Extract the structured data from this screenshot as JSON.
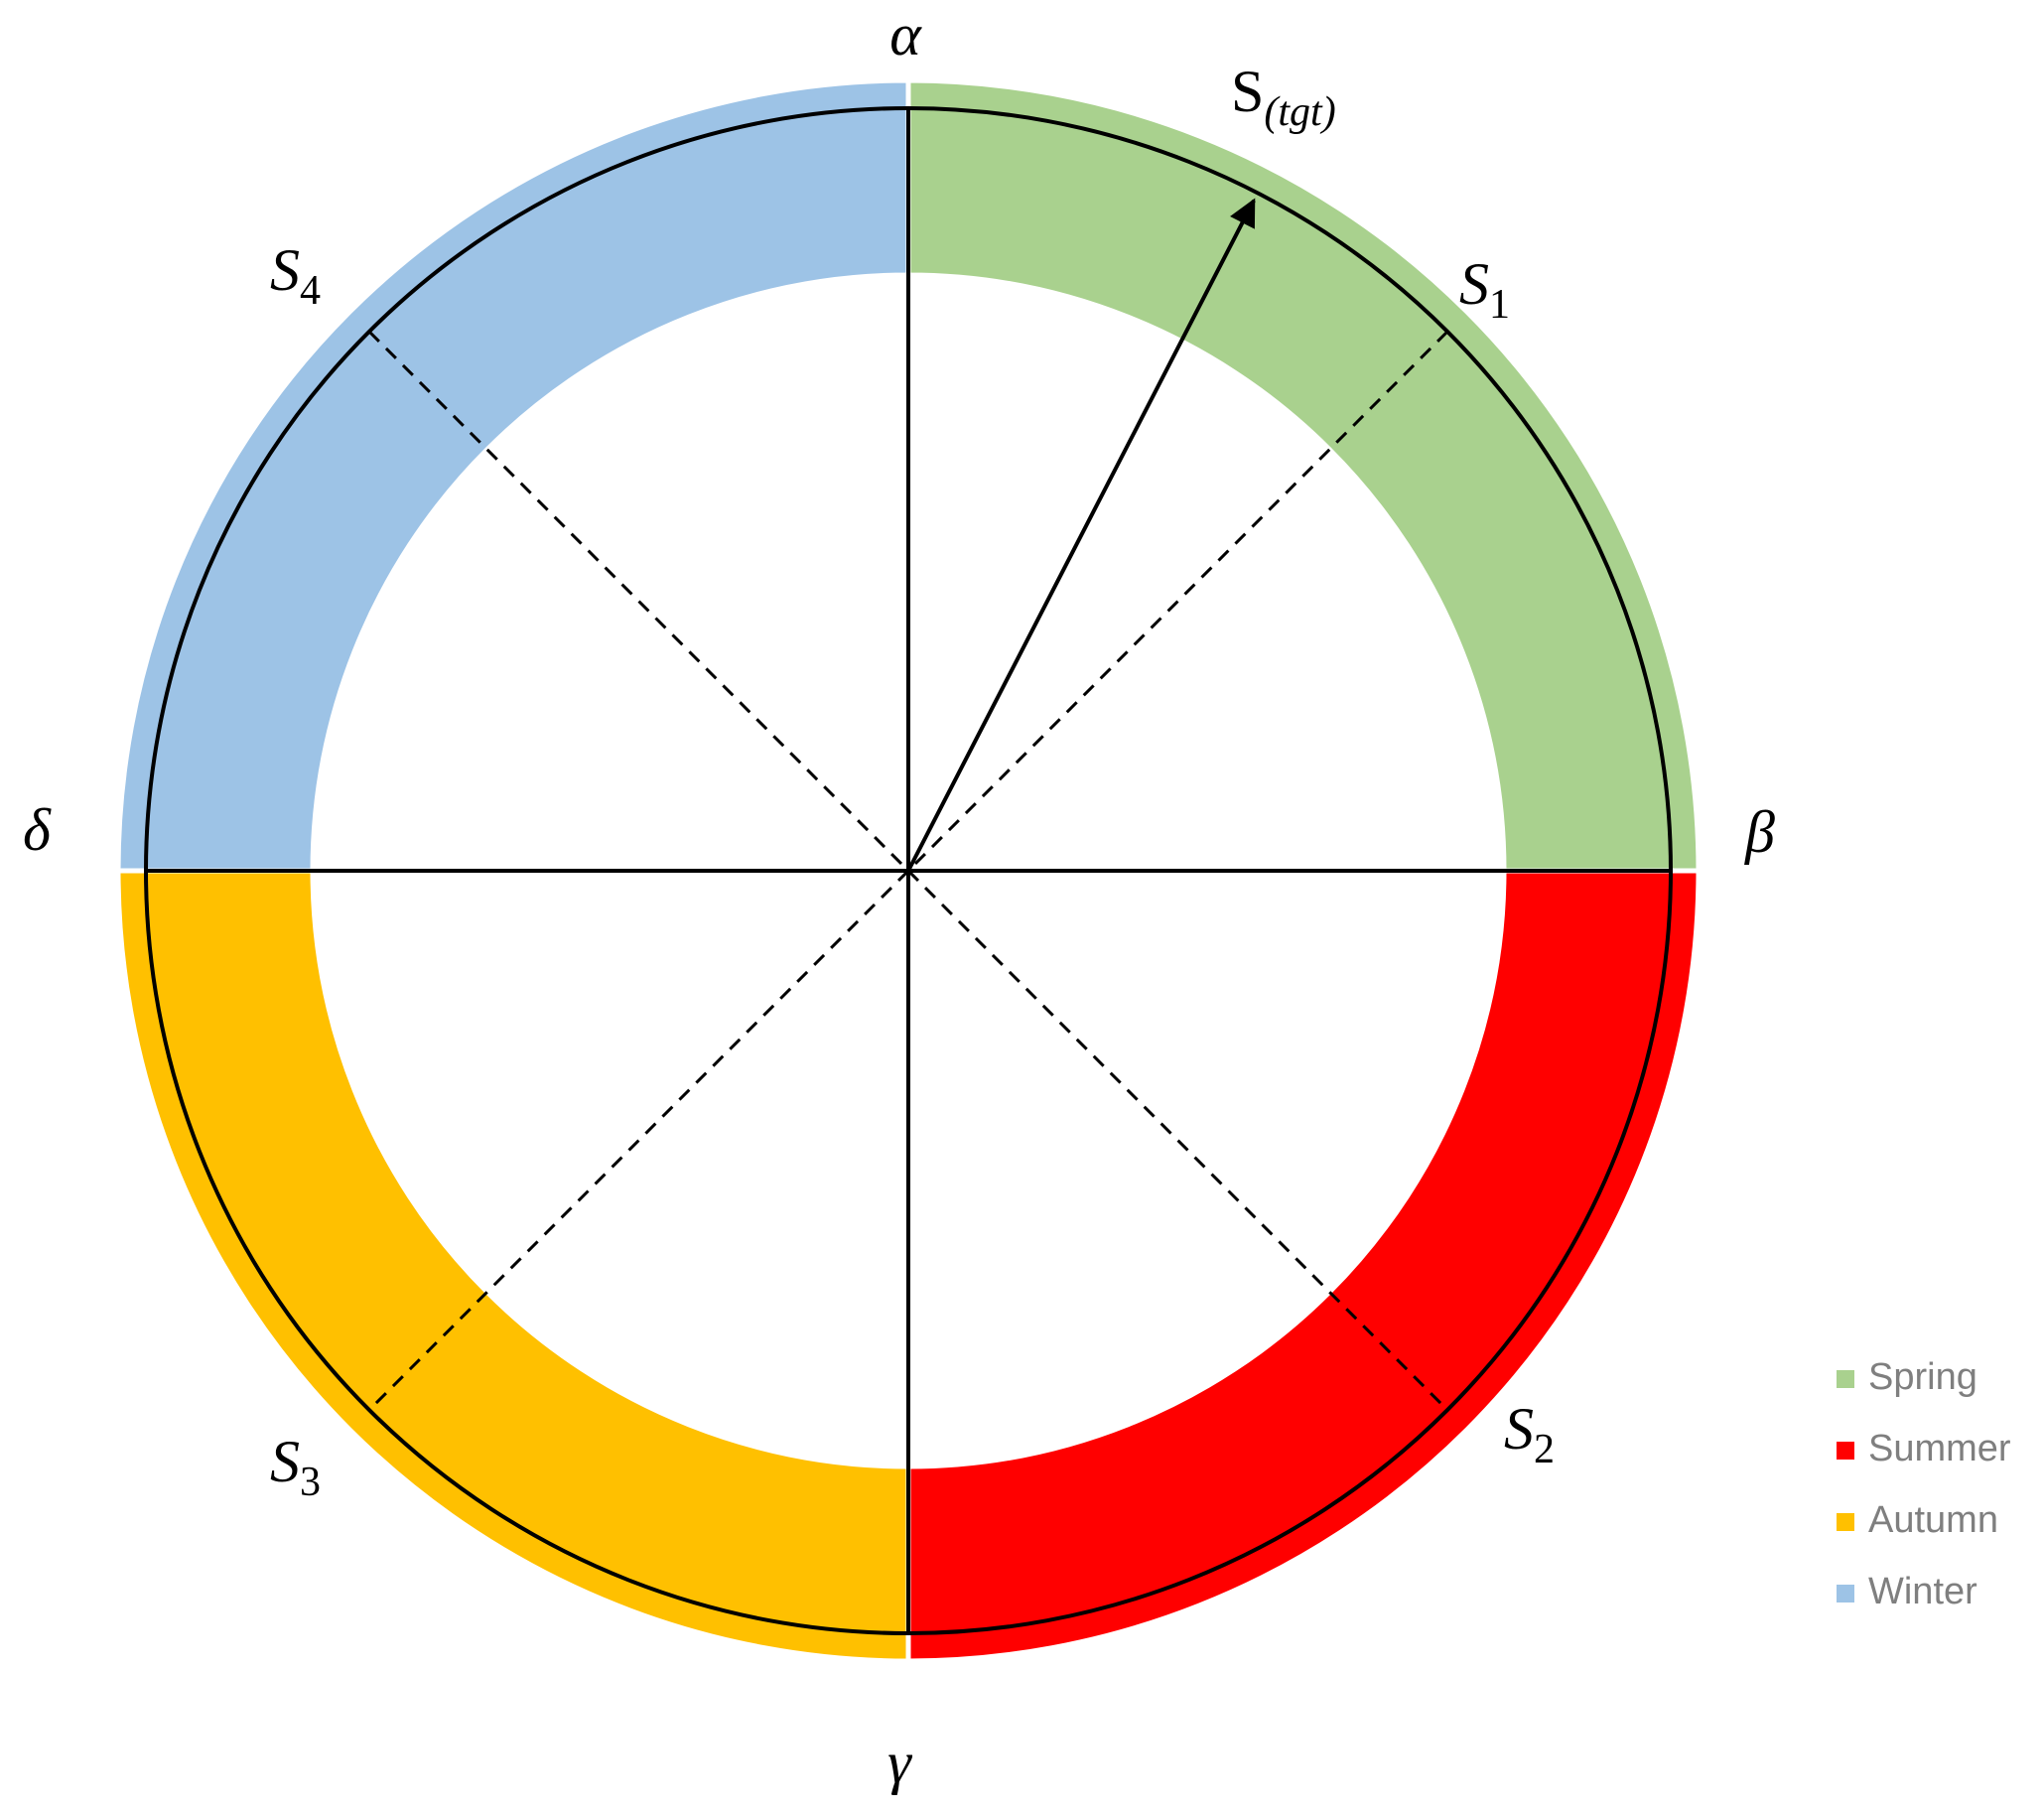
{
  "directions": {
    "top": "α",
    "right": "β",
    "bottom": "γ",
    "left": "δ"
  },
  "points": [
    {
      "main": "S",
      "sub": "1"
    },
    {
      "main": "S",
      "sub": "2"
    },
    {
      "main": "S",
      "sub": "3"
    },
    {
      "main": "S",
      "sub": "4"
    }
  ],
  "target": {
    "main": "S",
    "sub": "(tgt)"
  },
  "legend": [
    {
      "label": "Spring",
      "color": "#a9d18e"
    },
    {
      "label": "Summer",
      "color": "#ff0000"
    },
    {
      "label": "Autumn",
      "color": "#ffc000"
    },
    {
      "label": "Winter",
      "color": "#9dc3e6"
    }
  ]
}
